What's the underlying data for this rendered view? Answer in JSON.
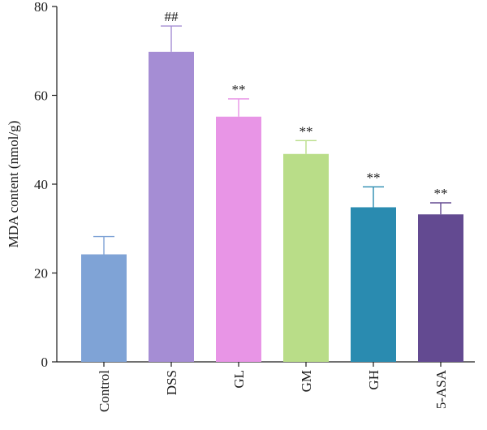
{
  "chart_data": {
    "type": "bar",
    "title": "",
    "xlabel": "",
    "ylabel": "MDA content (nmol/g)",
    "ylim": [
      0,
      80
    ],
    "yticks": [
      0,
      20,
      40,
      60,
      80
    ],
    "grid": false,
    "categories": [
      "Control",
      "DSS",
      "GL",
      "GM",
      "GH",
      "5-ASA"
    ],
    "values": [
      24.2,
      69.8,
      55.2,
      46.8,
      34.8,
      33.2
    ],
    "errors": [
      4.0,
      5.8,
      4.0,
      3.0,
      4.6,
      2.6
    ],
    "significance": [
      "",
      "##",
      "**",
      "**",
      "**",
      "**"
    ],
    "colors": [
      "#7fa3d6",
      "#a58dd4",
      "#e895e6",
      "#b9dd88",
      "#2a8bb0",
      "#634a91"
    ]
  }
}
